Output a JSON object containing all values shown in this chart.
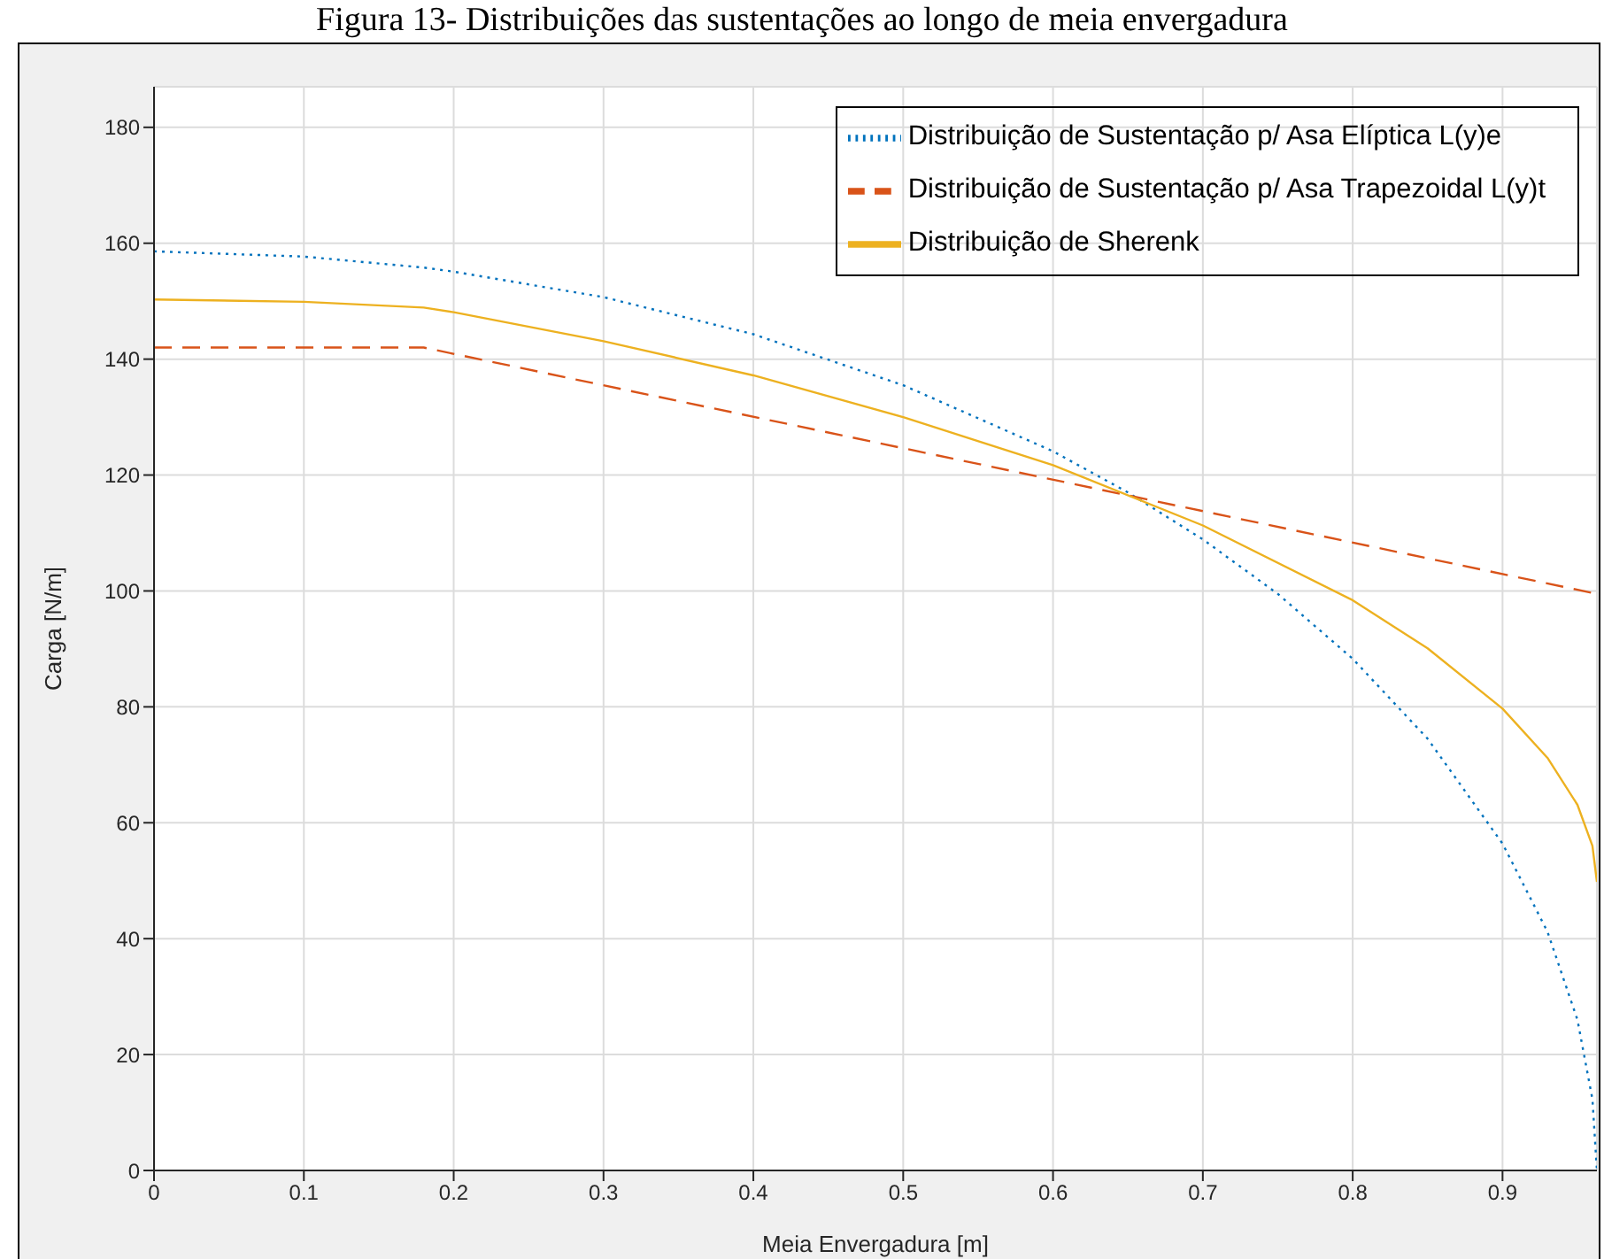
{
  "chart_data": {
    "type": "line",
    "title": "Figura 13- Distribuições das sustentações ao longo de meia envergadura",
    "xlabel": "Meia Envergadura [m]",
    "ylabel": "Carga [N/m]",
    "xlim": [
      0,
      0.963
    ],
    "ylim": [
      0,
      187
    ],
    "xticks": [
      0,
      0.1,
      0.2,
      0.3,
      0.4,
      0.5,
      0.6,
      0.7,
      0.8,
      0.9
    ],
    "yticks": [
      0,
      20,
      40,
      60,
      80,
      100,
      120,
      140,
      160,
      180
    ],
    "grid": true,
    "legend": "top right",
    "marker": "none",
    "series": [
      {
        "name": "Distribuição de Sustentação p/ Asa Elíptica L(y)e",
        "color": "#0072bd",
        "line_style": "dotted",
        "x": [
          0,
          0.1,
          0.18,
          0.2,
          0.3,
          0.4,
          0.5,
          0.6,
          0.65,
          0.7,
          0.75,
          0.8,
          0.85,
          0.9,
          0.93,
          0.95,
          0.96,
          0.963
        ],
        "values": [
          158.6,
          157.7,
          155.8,
          155.1,
          150.7,
          144.3,
          135.5,
          124.1,
          117.0,
          108.9,
          99.5,
          88.3,
          74.5,
          56.4,
          41.2,
          26.0,
          12.3,
          0
        ]
      },
      {
        "name": "Distribuição de Sustentação p/ Asa Trapezoidal L(y)t",
        "color": "#d95319",
        "line_style": "dashed",
        "x": [
          0,
          0.18,
          0.963
        ],
        "values": [
          142,
          142,
          99.5
        ]
      },
      {
        "name": "Distribuição de Sherenk",
        "color": "#edb120",
        "line_style": "solid",
        "x": [
          0,
          0.1,
          0.18,
          0.2,
          0.3,
          0.4,
          0.5,
          0.6,
          0.7,
          0.8,
          0.85,
          0.9,
          0.93,
          0.95,
          0.96,
          0.963
        ],
        "values": [
          150.3,
          149.9,
          148.9,
          148.1,
          143.1,
          137.2,
          130.0,
          121.7,
          111.3,
          98.4,
          90.1,
          79.7,
          71.2,
          63.1,
          56.0,
          49.8
        ]
      }
    ]
  }
}
